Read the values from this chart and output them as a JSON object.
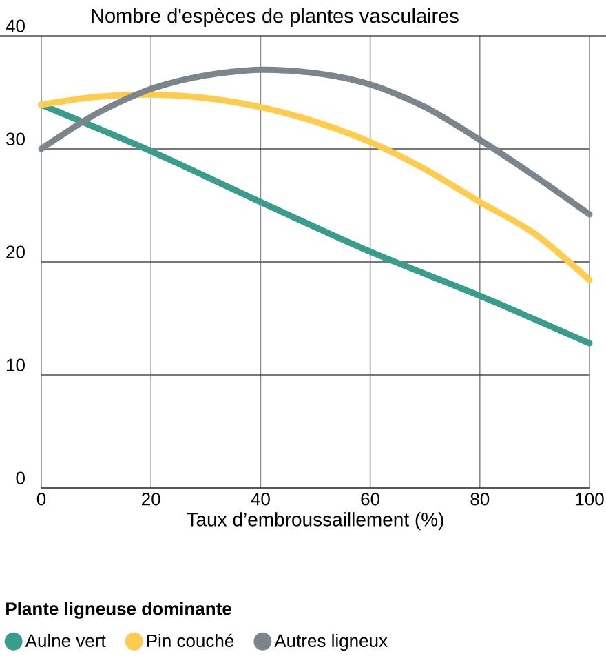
{
  "chart_data": {
    "type": "line",
    "title": "Nombre d'espèces de plantes vasculaires",
    "xlabel": "Taux d’embroussaillement (%)",
    "legend_title": "Plante ligneuse dominante",
    "x": [
      0,
      10,
      20,
      30,
      40,
      50,
      60,
      70,
      80,
      90,
      100
    ],
    "series": [
      {
        "name": "Aulne vert",
        "color": "#3a9c8a",
        "x": [
          0,
          20,
          40,
          60,
          80,
          100
        ],
        "values": [
          33.9,
          29.8,
          25.3,
          20.9,
          17.0,
          12.8
        ]
      },
      {
        "name": "Pin couché",
        "color": "#ffcc4d",
        "values": [
          33.9,
          34.6,
          34.8,
          34.5,
          33.7,
          32.4,
          30.6,
          28.2,
          25.3,
          22.5,
          18.4
        ]
      },
      {
        "name": "Autres ligneux",
        "color": "#7d858c",
        "values": [
          30.0,
          33.1,
          35.3,
          36.5,
          37.0,
          36.7,
          35.7,
          33.7,
          30.8,
          27.6,
          24.2
        ]
      }
    ],
    "xlim": [
      0,
      100
    ],
    "ylim": [
      0,
      40
    ],
    "xticks": [
      0,
      20,
      40,
      60,
      80,
      100
    ],
    "yticks": [
      0,
      10,
      20,
      30,
      40
    ],
    "grid": true,
    "legend": "bottom",
    "marker": "none",
    "line_style": "solid"
  }
}
